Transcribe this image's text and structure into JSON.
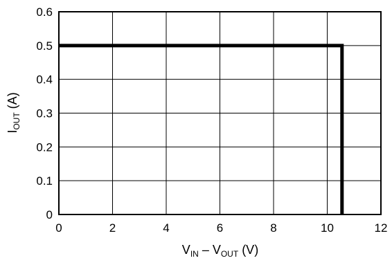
{
  "chart_data": {
    "type": "line",
    "title": "",
    "xlabel": {
      "main": "V",
      "sub1": "IN",
      "mid": " – V",
      "sub2": "OUT",
      "unit": " (V)"
    },
    "ylabel": {
      "main": "I",
      "sub": "OUT",
      "unit": " (A)"
    },
    "xlim": [
      0,
      12
    ],
    "ylim": [
      0,
      0.6
    ],
    "x_ticks": [
      0,
      2,
      4,
      6,
      8,
      10,
      12
    ],
    "y_ticks": [
      0,
      0.1,
      0.2,
      0.3,
      0.4,
      0.5,
      0.6
    ],
    "x_tick_labels": [
      "0",
      "2",
      "4",
      "6",
      "8",
      "10",
      "12"
    ],
    "y_tick_labels": [
      "0",
      "0.1",
      "0.2",
      "0.3",
      "0.4",
      "0.5",
      "0.6"
    ],
    "grid": true,
    "legend": "none",
    "series": [
      {
        "x": [
          0,
          10.55,
          10.55
        ],
        "y": [
          0.5,
          0.5,
          0
        ],
        "color": "#000000"
      }
    ]
  }
}
